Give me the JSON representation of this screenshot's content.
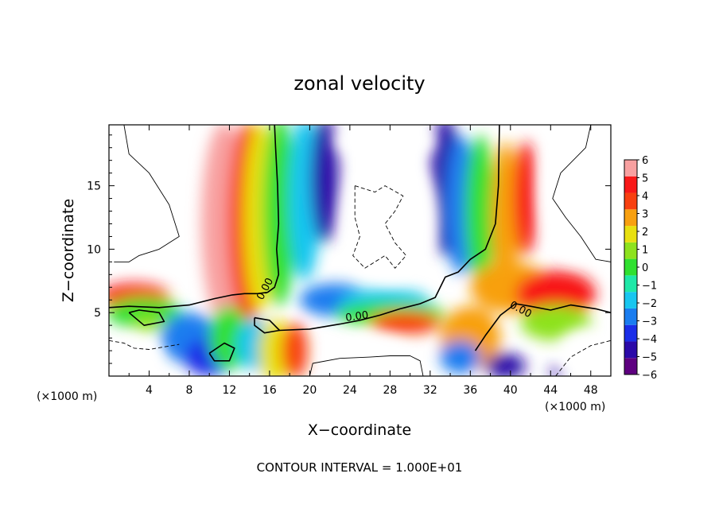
{
  "chart_data": {
    "type": "heatmap",
    "title": "zonal velocity",
    "xlabel": "X−coordinate",
    "ylabel": "Z−coordinate",
    "x_unit_left": "(×1000 m)",
    "x_unit_right": "(×1000 m)",
    "footer": "CONTOUR INTERVAL = 1.000E+01",
    "xlim": [
      0,
      50
    ],
    "ylim": [
      0,
      19.8
    ],
    "x_ticks": [
      4,
      8,
      12,
      16,
      20,
      24,
      28,
      32,
      36,
      40,
      44,
      48
    ],
    "y_ticks": [
      5,
      10,
      15
    ],
    "x_tick_labels": [
      "4",
      "8",
      "12",
      "16",
      "20",
      "24",
      "28",
      "32",
      "36",
      "40",
      "44",
      "48"
    ],
    "y_tick_labels": [
      "5",
      "10",
      "15"
    ],
    "colorbar": {
      "min": -6,
      "max": 6,
      "labels": [
        "6",
        "5",
        "4",
        "3",
        "2",
        "1",
        "0",
        "−1",
        "−2",
        "−3",
        "−4",
        "−5",
        "−6"
      ],
      "colors": [
        "#5e0080",
        "#2b0aa8",
        "#1a2ee8",
        "#1a7df0",
        "#18c6f0",
        "#1fe8a8",
        "#30e030",
        "#8ee21e",
        "#e8e010",
        "#f8a010",
        "#f84010",
        "#f81818",
        "#f8a0a0"
      ]
    },
    "contour_labels": [
      "0.00",
      "0.00",
      "0.00"
    ],
    "contour_interval": "1.000E+01",
    "fields": [
      {
        "x": 11.5,
        "y": 12.0,
        "rx": 2.3,
        "ry": 8.0,
        "v": 6
      },
      {
        "x": 13.8,
        "y": 12.0,
        "rx": 2.0,
        "ry": 8.0,
        "v": 4
      },
      {
        "x": 15.0,
        "y": 12.5,
        "rx": 1.6,
        "ry": 7.5,
        "v": 2
      },
      {
        "x": 17.0,
        "y": 13.0,
        "rx": 1.7,
        "ry": 7.5,
        "v": 0
      },
      {
        "x": 19.5,
        "y": 14.0,
        "rx": 1.6,
        "ry": 6.5,
        "v": -2
      },
      {
        "x": 21.5,
        "y": 15.5,
        "rx": 1.4,
        "ry": 5.0,
        "v": -5
      },
      {
        "x": 22.5,
        "y": 6.0,
        "rx": 3.5,
        "ry": 1.3,
        "v": -3
      },
      {
        "x": 27.5,
        "y": 5.8,
        "rx": 4.5,
        "ry": 1.1,
        "v": -2
      },
      {
        "x": 28.0,
        "y": 4.9,
        "rx": 5.5,
        "ry": 1.0,
        "v": 0
      },
      {
        "x": 29.5,
        "y": 4.2,
        "rx": 3.5,
        "ry": 0.9,
        "v": 4
      },
      {
        "x": 33.5,
        "y": 15.0,
        "rx": 1.5,
        "ry": 5.5,
        "v": -5
      },
      {
        "x": 35.0,
        "y": 13.5,
        "rx": 1.5,
        "ry": 5.5,
        "v": -3
      },
      {
        "x": 37.0,
        "y": 13.0,
        "rx": 1.5,
        "ry": 6.0,
        "v": 0
      },
      {
        "x": 39.5,
        "y": 12.5,
        "rx": 1.4,
        "ry": 6.0,
        "v": 3
      },
      {
        "x": 41.5,
        "y": 14.0,
        "rx": 1.2,
        "ry": 4.5,
        "v": 5
      },
      {
        "x": 40.0,
        "y": 7.0,
        "rx": 4.0,
        "ry": 2.0,
        "v": 3
      },
      {
        "x": 44.5,
        "y": 6.5,
        "rx": 4.0,
        "ry": 1.8,
        "v": 5
      },
      {
        "x": 44.5,
        "y": 4.2,
        "rx": 3.5,
        "ry": 1.4,
        "v": 1
      },
      {
        "x": 36.0,
        "y": 3.0,
        "rx": 3.0,
        "ry": 2.5,
        "v": 3
      },
      {
        "x": 35.0,
        "y": 1.5,
        "rx": 2.0,
        "ry": 1.3,
        "v": -3
      },
      {
        "x": 39.5,
        "y": 0.8,
        "rx": 2.0,
        "ry": 1.0,
        "v": -5
      },
      {
        "x": 44.5,
        "y": 0.3,
        "rx": 0.6,
        "ry": 0.4,
        "v": -5
      },
      {
        "x": 2.5,
        "y": 6.3,
        "rx": 3.5,
        "ry": 1.0,
        "v": 5
      },
      {
        "x": 3.5,
        "y": 5.0,
        "rx": 3.8,
        "ry": 1.2,
        "v": 0
      },
      {
        "x": 4.0,
        "y": 4.2,
        "rx": 1.6,
        "ry": 0.7,
        "v": 1
      },
      {
        "x": 8.0,
        "y": 3.0,
        "rx": 2.8,
        "ry": 2.0,
        "v": -3
      },
      {
        "x": 10.0,
        "y": 1.5,
        "rx": 2.5,
        "ry": 1.5,
        "v": -4
      },
      {
        "x": 12.0,
        "y": 3.0,
        "rx": 2.0,
        "ry": 2.5,
        "v": 0
      },
      {
        "x": 14.5,
        "y": 2.5,
        "rx": 1.8,
        "ry": 2.0,
        "v": -2
      },
      {
        "x": 16.5,
        "y": 2.0,
        "rx": 1.6,
        "ry": 2.5,
        "v": 2
      },
      {
        "x": 18.5,
        "y": 2.0,
        "rx": 1.3,
        "ry": 2.2,
        "v": 4
      }
    ],
    "contours": [
      {
        "style": "solid",
        "points": [
          [
            16.5,
            19.8
          ],
          [
            16.6,
            18
          ],
          [
            16.8,
            15
          ],
          [
            16.9,
            12
          ],
          [
            16.7,
            10
          ],
          [
            16.9,
            8
          ],
          [
            16.5,
            7
          ],
          [
            15.8,
            6.6
          ],
          [
            14.8,
            6.5
          ],
          [
            13.5,
            6.5
          ],
          [
            12.3,
            6.4
          ],
          [
            10.5,
            6.1
          ],
          [
            8,
            5.6
          ],
          [
            5,
            5.4
          ],
          [
            2,
            5.5
          ],
          [
            0,
            5.4
          ]
        ]
      },
      {
        "style": "solid",
        "points": [
          [
            17,
            3.6
          ],
          [
            20,
            3.7
          ],
          [
            23,
            4.1
          ],
          [
            25,
            4.4
          ],
          [
            27,
            4.8
          ],
          [
            29,
            5.3
          ],
          [
            31,
            5.7
          ],
          [
            32.5,
            6.2
          ],
          [
            33.5,
            7.8
          ],
          [
            34.8,
            8.2
          ],
          [
            36,
            9.2
          ],
          [
            37.5,
            10
          ],
          [
            38.5,
            12
          ],
          [
            38.8,
            15
          ],
          [
            38.9,
            19.8
          ]
        ]
      },
      {
        "style": "solid",
        "points": [
          [
            36.5,
            2.0
          ],
          [
            37.5,
            3.2
          ],
          [
            39,
            4.8
          ],
          [
            40.5,
            5.7
          ],
          [
            42,
            5.5
          ],
          [
            44,
            5.2
          ],
          [
            46,
            5.6
          ],
          [
            48.5,
            5.3
          ],
          [
            50,
            5.0
          ]
        ]
      },
      {
        "style": "solid",
        "points": [
          [
            2,
            5.0
          ],
          [
            3.5,
            4.0
          ],
          [
            5.5,
            4.3
          ],
          [
            5,
            5.0
          ],
          [
            3,
            5.2
          ],
          [
            2,
            5.0
          ]
        ]
      },
      {
        "style": "solid",
        "points": [
          [
            10,
            1.8
          ],
          [
            11.5,
            2.6
          ],
          [
            12.5,
            2.2
          ],
          [
            12,
            1.2
          ],
          [
            10.5,
            1.2
          ],
          [
            10,
            1.8
          ]
        ]
      },
      {
        "style": "solid",
        "points": [
          [
            14.5,
            4.6
          ],
          [
            16,
            4.4
          ],
          [
            17,
            3.6
          ],
          [
            15.5,
            3.4
          ],
          [
            14.5,
            4.0
          ],
          [
            14.5,
            4.6
          ]
        ]
      },
      {
        "style": "thin",
        "points": [
          [
            1.5,
            19.8
          ],
          [
            2,
            17.5
          ],
          [
            4,
            16
          ],
          [
            6,
            13.5
          ],
          [
            7,
            11
          ],
          [
            5,
            10
          ],
          [
            3,
            9.5
          ],
          [
            2,
            9
          ],
          [
            0.5,
            9
          ]
        ]
      },
      {
        "style": "thin",
        "points": [
          [
            48,
            19.8
          ],
          [
            47.5,
            18
          ],
          [
            45,
            16
          ],
          [
            44.2,
            14
          ],
          [
            45.5,
            12.5
          ],
          [
            47,
            11
          ],
          [
            48.5,
            9.2
          ],
          [
            50,
            9
          ]
        ]
      },
      {
        "style": "thin",
        "points": [
          [
            20,
            0
          ],
          [
            20.3,
            1.0
          ],
          [
            23,
            1.4
          ],
          [
            26,
            1.5
          ],
          [
            28,
            1.6
          ],
          [
            30,
            1.6
          ],
          [
            31,
            1.2
          ],
          [
            31.3,
            0
          ]
        ]
      },
      {
        "style": "dashed",
        "points": [
          [
            24.5,
            15.0
          ],
          [
            26.5,
            14.5
          ],
          [
            27.5,
            15
          ],
          [
            29.3,
            14.2
          ],
          [
            28.5,
            13
          ],
          [
            27.5,
            12
          ],
          [
            28.5,
            10.5
          ],
          [
            29.6,
            9.5
          ],
          [
            28.5,
            8.5
          ],
          [
            27.5,
            9.5
          ],
          [
            26.5,
            9.0
          ],
          [
            25.5,
            8.5
          ],
          [
            24.3,
            9.5
          ],
          [
            25,
            11
          ],
          [
            24.5,
            12.5
          ],
          [
            24.5,
            15.0
          ]
        ]
      },
      {
        "style": "dashed",
        "points": [
          [
            0,
            2.8
          ],
          [
            1.5,
            2.6
          ],
          [
            2.5,
            2.2
          ],
          [
            4,
            2.1
          ],
          [
            5.5,
            2.3
          ],
          [
            7,
            2.5
          ]
        ]
      },
      {
        "style": "dashed",
        "points": [
          [
            44.5,
            0
          ],
          [
            46,
            1.5
          ],
          [
            48,
            2.4
          ],
          [
            50,
            2.8
          ]
        ]
      }
    ],
    "blank_regions": [
      {
        "x": 3.5,
        "y": 14.5,
        "rx": 3.5,
        "ry": 5.5
      },
      {
        "x": 28,
        "y": 12.5,
        "rx": 4.8,
        "ry": 5.2
      },
      {
        "x": 27.5,
        "y": 18.5,
        "rx": 5,
        "ry": 1.5
      },
      {
        "x": 46.5,
        "y": 14.5,
        "rx": 3.8,
        "ry": 5.5
      },
      {
        "x": 26,
        "y": 1.5,
        "rx": 4.5,
        "ry": 1.8
      },
      {
        "x": 2.5,
        "y": 1.5,
        "rx": 2.5,
        "ry": 1.4
      },
      {
        "x": 47.5,
        "y": 2.0,
        "rx": 2.8,
        "ry": 1.8
      }
    ]
  }
}
